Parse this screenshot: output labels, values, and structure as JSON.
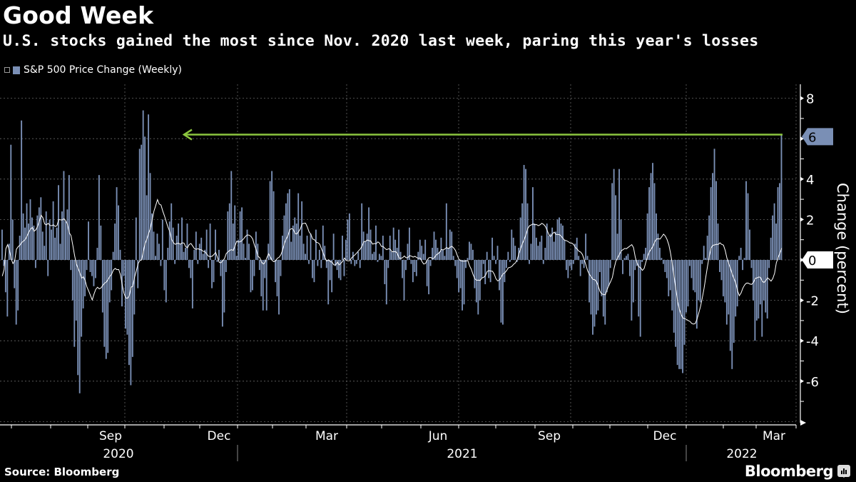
{
  "header": {
    "title": "Good Week",
    "subtitle": "U.S. stocks gained the most since Nov. 2020 last week, paring this year's losses"
  },
  "footer": {
    "source": "Source: Bloomberg",
    "brand": "Bloomberg"
  },
  "colors": {
    "bar": "#7a8fb5",
    "average_line": "#ffffff",
    "annotation_arrow": "#8cc63f",
    "last_value_badge": "#7a8fb5",
    "zero_badge": "#ffffff",
    "grid": "#666666"
  },
  "chart_data": {
    "type": "bar",
    "title": "Good Week",
    "subtitle": "U.S. stocks gained the most since Nov. 2020 last week, paring this year's losses",
    "legend": [
      {
        "name": "S&P 500 Price Change (Weekly)",
        "placement": "top-left"
      }
    ],
    "ylabel": "Change (percent)",
    "xlabel": "",
    "ylim": [
      -8,
      9
    ],
    "yticks": [
      -6,
      -4,
      -2,
      0,
      2,
      4,
      6,
      8
    ],
    "y_axis_side": "right",
    "grid": true,
    "x_month_labels": [
      "Sep",
      "Dec",
      "Mar",
      "Jun",
      "Sep",
      "Dec",
      "Mar"
    ],
    "x_year_labels": [
      "2020",
      "2021",
      "2022"
    ],
    "last_value_label": "6",
    "zero_label": "0",
    "annotation": {
      "type": "arrow",
      "from": "last bar",
      "to": "Nov. 2020 peak",
      "value": 6.2
    },
    "series": [
      {
        "name": "S&P 500 Price Change (Weekly)",
        "kind": "bar",
        "values": [
          1.5,
          -0.3,
          -1.6,
          -2.8,
          0.8,
          5.7,
          2.0,
          -1.4,
          -3.2,
          -2.5,
          1.2,
          6.9,
          2.3,
          1.6,
          2.8,
          1.8,
          3.0,
          2.1,
          1.7,
          -0.4,
          2.2,
          2.6,
          3.1,
          1.4,
          0.7,
          2.4,
          -0.8,
          2.0,
          1.5,
          2.9,
          1.1,
          1.6,
          3.7,
          0.8,
          2.4,
          4.4,
          1.9,
          2.5,
          4.2,
          -0.5,
          -2.0,
          -4.3,
          -3.0,
          -5.7,
          -6.6,
          -3.8,
          -2.4,
          -1.8,
          -0.5,
          1.9,
          -0.6,
          -0.8,
          -1.3,
          -0.9,
          0.6,
          4.2,
          1.7,
          -2.6,
          -4.3,
          -4.9,
          -4.6,
          -2.1,
          -1.5,
          0.4,
          1.8,
          3.6,
          2.7,
          0.5,
          -2.3,
          -0.8,
          -3.4,
          -3.7,
          -5.2,
          -6.2,
          -4.8,
          -2.7,
          2.1,
          -1.4,
          5.5,
          5.7,
          7.4,
          6.1,
          3.2,
          7.2,
          4.3,
          2.3,
          1.4,
          0.2,
          1.3,
          0.8,
          -0.3,
          2.0,
          -1.5,
          -2.1,
          0.6,
          1.9,
          2.8,
          1.6,
          -0.2,
          1.2,
          1.8,
          0.8,
          2.1,
          0.4,
          0.6,
          1.8,
          -0.4,
          -0.9,
          -2.4,
          0.5,
          1.4,
          -0.2,
          0.8,
          1.1,
          0.3,
          0.5,
          1.5,
          -0.4,
          1.8,
          -1.4,
          -1.1,
          1.5,
          -0.1,
          0.5,
          -0.8,
          -3.3,
          -2.6,
          -0.6,
          2.4,
          2.8,
          4.4,
          1.8,
          2.7,
          0.2,
          1.0,
          2.4,
          2.6,
          0.8,
          0.1,
          1.5,
          0.8,
          -1.6,
          -1.5,
          -0.8,
          1.4,
          0.8,
          -0.5,
          -1.8,
          -2.5,
          -0.9,
          -2.5,
          0.8,
          3.9,
          4.4,
          3.4,
          -1.1,
          -1.8,
          -2.7,
          -0.8,
          1.2,
          2.2,
          2.8,
          3.3,
          3.5,
          0.9,
          1.7,
          2.1,
          1.8,
          3.3,
          1.2,
          2.9,
          0.8,
          0.3,
          1.2,
          -0.2,
          1.3,
          -0.9,
          -1.1,
          1.5,
          -0.3,
          0.5,
          -0.4,
          1.7,
          0.7,
          -0.4,
          -2.2,
          -1.0,
          -1.6,
          1.3,
          -0.3,
          -0.5,
          -0.9,
          -1.0,
          1.2,
          -0.8,
          1.0,
          2.0,
          2.3,
          -0.2,
          0.4,
          -0.3,
          -0.2,
          0.4,
          -0.4,
          2.8,
          1.4,
          0.9,
          1.3,
          2.6,
          1.5,
          0.3,
          0.4,
          1.7,
          -0.1,
          0.3,
          0.2,
          1.2,
          -1.2,
          -2.2,
          -0.4,
          1.2,
          0.4,
          1.6,
          1.0,
          0.6,
          1.5,
          0.4,
          -0.9,
          -2.0,
          -0.5,
          0.8,
          1.6,
          -0.2,
          -1.1,
          -0.6,
          -0.8,
          0.4,
          1.0,
          0.7,
          0.3,
          1.0,
          -1.3,
          -1.7,
          -0.3,
          0.6,
          1.4,
          1.0,
          0.6,
          0.4,
          1.1,
          0.5,
          0.2,
          2.8,
          0.6,
          1.5,
          1.4,
          0.2,
          -0.3,
          -0.9,
          -1.6,
          -1.4,
          -2.5,
          -2.2,
          -0.4,
          0.1,
          0.9,
          0.8,
          0.5,
          -1.4,
          -2.1,
          -2.7,
          -2.0,
          -0.9,
          -0.2,
          -1.2,
          0.4,
          -0.9,
          -1.1,
          1.1,
          0.2,
          -0.2,
          0.7,
          -1.5,
          -3.1,
          -3.2,
          -1.1,
          -0.4,
          0.4,
          -0.1,
          1.5,
          1.1,
          0.7,
          -0.1,
          0.6,
          2.1,
          2.8,
          4.7,
          4.5,
          2.8,
          -0.2,
          0.8,
          3.6,
          1.8,
          1.1,
          0.7,
          0.9,
          1.2,
          -0.2,
          0.6,
          1.8,
          1.2,
          1.3,
          1.6,
          0.9,
          1.4,
          2.0,
          2.1,
          1.8,
          1.7,
          1.0,
          -0.5,
          -0.9,
          -0.3,
          -0.5,
          -0.2,
          0.8,
          1.1,
          0.2,
          -0.8,
          -0.2,
          -0.4,
          1.3,
          0.2,
          -2.1,
          -2.7,
          -3.7,
          -3.3,
          -2.7,
          -2.5,
          -0.6,
          -1.8,
          -2.8,
          -3.2,
          -1.6,
          -1.3,
          -0.4,
          3.8,
          4.5,
          3.2,
          1.3,
          4.5,
          2.0,
          -0.7,
          0.1,
          0.2,
          0.3,
          -0.8,
          -3.0,
          -2.1,
          -0.5,
          -0.3,
          -2.8,
          -3.8,
          -0.1,
          0.3,
          0.6,
          2.3,
          3.6,
          4.3,
          4.8,
          3.8,
          2.3,
          1.3,
          0.6,
          0.1,
          -0.2,
          -0.6,
          -0.9,
          -1.8,
          -1.5,
          -2.5,
          -3.6,
          -4.3,
          -5.2,
          -5.4,
          -5.4,
          -5.6,
          -4.2,
          -2.6,
          -2.3,
          -0.3,
          -0.9,
          -1.5,
          -1.6,
          -3.4,
          -2.0,
          -2.1,
          -0.2,
          0.7,
          0.1,
          1.2,
          2.2,
          3.6,
          4.3,
          5.5,
          3.9,
          1.8,
          -0.6,
          -1.0,
          -1.8,
          -2.1,
          -3.2,
          -2.7,
          -4.5,
          -5.4,
          -4.1,
          -2.8,
          -2.3,
          0.2,
          0.6,
          -0.5,
          0.1,
          3.9,
          3.3,
          1.5,
          -0.4,
          -2.0,
          -4.0,
          -3.0,
          -2.9,
          -2.2,
          -3.8,
          -2.0,
          -2.6,
          -2.9,
          -0.4,
          1.1,
          2.2,
          2.8,
          1.8,
          3.6,
          3.8,
          6.2
        ]
      }
    ]
  }
}
